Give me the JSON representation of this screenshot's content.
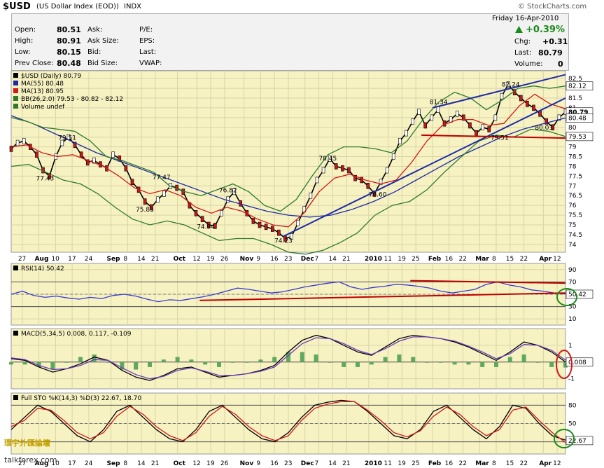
{
  "header": {
    "ticker": "$USD",
    "name": "(US Dollar Index (EOD))",
    "exchange": "INDX",
    "logo": "© StockCharts.com",
    "date": "Friday  16-Apr-2010"
  },
  "quote": {
    "open_label": "Open:",
    "open": "80.51",
    "high_label": "High:",
    "high": "80.91",
    "low_label": "Low:",
    "low": "80.15",
    "prev_label": "Prev Close:",
    "prev": "80.48",
    "ask_label": "Ask:",
    "ask_size_label": "Ask Size:",
    "bid_label": "Bid:",
    "bid_size_label": "Bid Size:",
    "pe_label": "P/E:",
    "eps_label": "EPS:",
    "last_label": "Last:",
    "vwap_label": "VWAP:",
    "change_pct": "+0.39%",
    "chg_label": "Chg:",
    "chg": "+0.31",
    "last_val_label": "Last:",
    "last_val": "80.79",
    "volume_label": "Volume:",
    "volume": "0",
    "up_color": "#1a8a1a"
  },
  "watermark": {
    "line1": "環宇外匯論壇",
    "line2": "talkforex.com"
  },
  "chart_data": [
    {
      "type": "line",
      "panel": "price",
      "legend": [
        {
          "text": "$USD (Daily) 80.79",
          "color": "#000000"
        },
        {
          "text": "MA(55) 80.48",
          "color": "#1c2aa8"
        },
        {
          "text": "MA(13) 80.95",
          "color": "#d01818"
        },
        {
          "text": "BB(26,2.0) 79.53 - 80.82 - 82.12",
          "color": "#2f7a2f"
        },
        {
          "text": "Volume undef",
          "color": "#2f7a2f"
        }
      ],
      "yticks": [
        74.0,
        74.5,
        75.0,
        75.5,
        76.0,
        76.5,
        77.0,
        77.5,
        78.0,
        78.5,
        79.0,
        79.5,
        80.0,
        80.5,
        81.0,
        81.5,
        82.0,
        82.5
      ],
      "ylim": [
        73.6,
        82.9
      ],
      "right_labels": [
        "82.12",
        "80.79",
        "80.48",
        "79.53"
      ],
      "annotations": [
        {
          "text": "79.51",
          "x": 0.1,
          "y": 79.51
        },
        {
          "text": "77.43",
          "x": 0.06,
          "y": 77.43
        },
        {
          "text": "77.47",
          "x": 0.27,
          "y": 77.47
        },
        {
          "text": "75.83",
          "x": 0.24,
          "y": 75.83
        },
        {
          "text": "76.82",
          "x": 0.39,
          "y": 76.82
        },
        {
          "text": "74.94",
          "x": 0.35,
          "y": 74.94
        },
        {
          "text": "74.23",
          "x": 0.49,
          "y": 74.23
        },
        {
          "text": "78.45",
          "x": 0.57,
          "y": 78.45
        },
        {
          "text": "76.60",
          "x": 0.66,
          "y": 76.6
        },
        {
          "text": "81.34",
          "x": 0.77,
          "y": 81.34
        },
        {
          "text": "82.24",
          "x": 0.9,
          "y": 82.24
        },
        {
          "text": "79.51",
          "x": 0.88,
          "y": 79.51
        },
        {
          "text": "80.03",
          "x": 0.96,
          "y": 80.03
        }
      ],
      "series": [
        {
          "name": "$USD (Daily)",
          "color": "#000000",
          "values": [
            78.9,
            79.2,
            79.3,
            79.0,
            78.6,
            77.8,
            77.5,
            78.5,
            79.2,
            79.5,
            79.1,
            78.6,
            78.2,
            78.3,
            78.1,
            77.9,
            78.6,
            78.4,
            77.9,
            77.2,
            76.8,
            76.2,
            75.9,
            76.3,
            76.6,
            77.0,
            76.9,
            76.7,
            76.0,
            75.6,
            75.3,
            75.0,
            74.95,
            75.6,
            76.3,
            76.7,
            76.1,
            75.6,
            75.2,
            75.0,
            74.9,
            74.8,
            74.6,
            74.3,
            74.4,
            75.1,
            75.8,
            76.5,
            77.3,
            77.8,
            78.4,
            78.0,
            77.9,
            77.8,
            77.4,
            77.3,
            77.0,
            76.6,
            77.2,
            77.8,
            78.5,
            79.3,
            79.7,
            80.3,
            80.8,
            80.1,
            80.5,
            80.9,
            80.2,
            80.4,
            80.7,
            80.5,
            80.1,
            79.7,
            80.0,
            79.9,
            80.5,
            81.6,
            82.2,
            81.8,
            81.5,
            81.2,
            81.0,
            80.7,
            80.3,
            80.0,
            80.5,
            80.79
          ]
        },
        {
          "name": "MA(55)",
          "color": "#1c2aa8",
          "values": [
            80.6,
            80.2,
            79.7,
            79.2,
            78.7,
            78.3,
            77.9,
            77.5,
            77.1,
            76.7,
            76.3,
            76.0,
            75.7,
            75.5,
            75.4,
            75.5,
            75.8,
            76.2,
            76.7,
            77.3,
            77.9,
            78.5,
            79.0,
            79.5,
            79.9,
            80.2,
            80.48
          ]
        },
        {
          "name": "MA(13)",
          "color": "#d01818",
          "values": [
            79.0,
            79.1,
            78.7,
            78.5,
            78.6,
            78.3,
            78.0,
            77.5,
            76.9,
            76.6,
            76.8,
            76.5,
            75.9,
            75.6,
            75.9,
            75.7,
            75.3,
            75.0,
            74.9,
            75.6,
            76.7,
            77.4,
            77.6,
            77.3,
            77.1,
            77.3,
            78.2,
            79.3,
            80.1,
            80.4,
            80.4,
            80.1,
            80.2,
            81.1,
            81.7,
            81.2,
            80.95
          ]
        },
        {
          "name": "BB upper",
          "color": "#2f7a2f",
          "values": [
            80.5,
            80.3,
            80.0,
            79.9,
            79.8,
            79.3,
            78.5,
            78.3,
            78.0,
            77.7,
            77.0,
            76.7,
            76.5,
            76.8,
            77.1,
            76.7,
            76.0,
            75.7,
            76.3,
            77.5,
            78.6,
            79.0,
            79.0,
            78.9,
            78.7,
            79.3,
            80.4,
            81.3,
            81.8,
            81.5,
            80.9,
            81.4,
            82.0,
            82.12,
            82.0,
            82.12
          ]
        },
        {
          "name": "BB lower",
          "color": "#2f7a2f",
          "values": [
            78.0,
            78.1,
            77.7,
            77.3,
            77.1,
            76.6,
            75.9,
            75.3,
            75.0,
            75.2,
            75.0,
            74.6,
            74.2,
            74.3,
            74.3,
            74.0,
            73.6,
            73.5,
            73.7,
            74.1,
            74.6,
            75.5,
            76.0,
            76.2,
            76.8,
            77.7,
            78.5,
            79.3,
            79.6,
            79.5,
            79.9,
            79.8,
            79.53
          ]
        }
      ],
      "trendlines": [
        {
          "name": "lower support",
          "from": [
            0.49,
            74.4
          ],
          "to": [
            1.0,
            81.5
          ],
          "color": "#1c2aa8"
        },
        {
          "name": "upper channel",
          "from": [
            0.76,
            81.0
          ],
          "to": [
            1.0,
            82.7
          ],
          "color": "#1c2aa8"
        },
        {
          "name": "horizontal support",
          "from": [
            0.74,
            79.6
          ],
          "to": [
            1.0,
            79.45
          ],
          "color": "#c00000"
        }
      ]
    },
    {
      "type": "line",
      "panel": "RSI",
      "legend": [
        {
          "text": "RSI(14) 50.42",
          "color": "#000000"
        }
      ],
      "yticks": [
        10,
        30,
        50,
        70,
        90
      ],
      "ylim": [
        0,
        100
      ],
      "right_labels": [
        "50.42"
      ],
      "series": [
        {
          "name": "RSI(14)",
          "color": "#3a3ad0",
          "values": [
            50,
            55,
            48,
            45,
            47,
            44,
            42,
            45,
            43,
            48,
            50,
            47,
            42,
            38,
            41,
            40,
            43,
            46,
            50,
            55,
            60,
            58,
            55,
            52,
            54,
            58,
            62,
            65,
            68,
            70,
            62,
            58,
            61,
            63,
            66,
            65,
            63,
            60,
            55,
            52,
            55,
            58,
            66,
            70,
            65,
            62,
            57,
            55,
            52,
            50.42
          ]
        }
      ],
      "trendlines": [
        {
          "from": [
            0.34,
            40
          ],
          "to": [
            1.0,
            52
          ],
          "color": "#c00000"
        },
        {
          "from": [
            0.72,
            72
          ],
          "to": [
            1.0,
            68
          ],
          "color": "#c00000"
        }
      ]
    },
    {
      "type": "line",
      "panel": "MACD",
      "legend": [
        {
          "text": "MACD(5,34,5) 0.008, 0.117, -0.109",
          "color": "#000000"
        }
      ],
      "yticks": [
        -1,
        0,
        1
      ],
      "ylim": [
        -1.6,
        2.0
      ],
      "right_labels": [
        "0.008"
      ],
      "series": [
        {
          "name": "MACD",
          "color": "#000000",
          "values": [
            0.2,
            0.1,
            -0.3,
            -0.6,
            -0.4,
            -0.1,
            0.3,
            0.1,
            -0.5,
            -0.9,
            -1.1,
            -0.8,
            -0.4,
            -0.3,
            -0.6,
            -0.9,
            -0.8,
            -0.7,
            -0.5,
            -0.2,
            0.6,
            1.3,
            1.6,
            1.4,
            1.0,
            0.6,
            0.4,
            0.9,
            1.4,
            1.6,
            1.5,
            1.4,
            1.2,
            0.9,
            0.5,
            0.1,
            0.6,
            1.2,
            1.0,
            0.6,
            0.008
          ]
        },
        {
          "name": "signal",
          "color": "#6b3ab8",
          "values": [
            0.25,
            0.15,
            -0.2,
            -0.45,
            -0.4,
            -0.2,
            0.15,
            0.1,
            -0.35,
            -0.75,
            -1.0,
            -0.85,
            -0.5,
            -0.35,
            -0.55,
            -0.8,
            -0.8,
            -0.7,
            -0.55,
            -0.3,
            0.4,
            1.1,
            1.45,
            1.4,
            1.1,
            0.7,
            0.45,
            0.8,
            1.25,
            1.5,
            1.5,
            1.4,
            1.25,
            0.95,
            0.6,
            0.2,
            0.5,
            1.05,
            1.0,
            0.7,
            0.117
          ]
        }
      ]
    },
    {
      "type": "line",
      "panel": "Full STO",
      "legend": [
        {
          "text": "Full STO %K(14,3) %D(3) 22.67, 18.70",
          "color": "#000000"
        }
      ],
      "yticks": [
        20,
        50,
        80
      ],
      "ylim": [
        0,
        100
      ],
      "right_labels": [
        "22.67"
      ],
      "series": [
        {
          "name": "%K",
          "color": "#000000",
          "values": [
            40,
            60,
            80,
            70,
            50,
            30,
            20,
            40,
            70,
            80,
            60,
            40,
            25,
            20,
            40,
            70,
            80,
            60,
            40,
            25,
            20,
            35,
            60,
            80,
            85,
            88,
            86,
            70,
            50,
            30,
            25,
            40,
            70,
            80,
            60,
            40,
            25,
            45,
            80,
            75,
            50,
            30,
            22.67
          ]
        },
        {
          "name": "%D",
          "color": "#d01818",
          "values": [
            45,
            55,
            75,
            72,
            55,
            35,
            25,
            35,
            62,
            78,
            65,
            45,
            30,
            22,
            35,
            62,
            78,
            65,
            45,
            30,
            22,
            30,
            55,
            75,
            82,
            86,
            86,
            72,
            55,
            35,
            28,
            38,
            62,
            77,
            65,
            45,
            30,
            40,
            72,
            77,
            55,
            35,
            18.7
          ]
        }
      ]
    }
  ],
  "xaxis": {
    "labels": [
      {
        "text": "27",
        "x": 0.02
      },
      {
        "text": "Aug",
        "x": 0.05
      },
      {
        "text": "10",
        "x": 0.08
      },
      {
        "text": "17",
        "x": 0.11
      },
      {
        "text": "24",
        "x": 0.14
      },
      {
        "text": "Sep",
        "x": 0.18
      },
      {
        "text": "8",
        "x": 0.21
      },
      {
        "text": "14",
        "x": 0.235
      },
      {
        "text": "21",
        "x": 0.26
      },
      {
        "text": "Oct",
        "x": 0.3
      },
      {
        "text": "12",
        "x": 0.335
      },
      {
        "text": "19",
        "x": 0.36
      },
      {
        "text": "26",
        "x": 0.385
      },
      {
        "text": "Nov",
        "x": 0.42
      },
      {
        "text": "9",
        "x": 0.45
      },
      {
        "text": "16",
        "x": 0.475
      },
      {
        "text": "23",
        "x": 0.5
      },
      {
        "text": "Dec",
        "x": 0.53
      },
      {
        "text": "7",
        "x": 0.555
      },
      {
        "text": "14",
        "x": 0.58
      },
      {
        "text": "21",
        "x": 0.605
      },
      {
        "text": "2010",
        "x": 0.645
      },
      {
        "text": "11",
        "x": 0.68
      },
      {
        "text": "19",
        "x": 0.705
      },
      {
        "text": "25",
        "x": 0.73
      },
      {
        "text": "Feb",
        "x": 0.76
      },
      {
        "text": "16",
        "x": 0.79
      },
      {
        "text": "22",
        "x": 0.815
      },
      {
        "text": "Mar",
        "x": 0.845
      },
      {
        "text": "8",
        "x": 0.875
      },
      {
        "text": "15",
        "x": 0.9
      },
      {
        "text": "22",
        "x": 0.925
      },
      {
        "text": "Apr",
        "x": 0.96
      },
      {
        "text": "12",
        "x": 0.985
      }
    ]
  }
}
